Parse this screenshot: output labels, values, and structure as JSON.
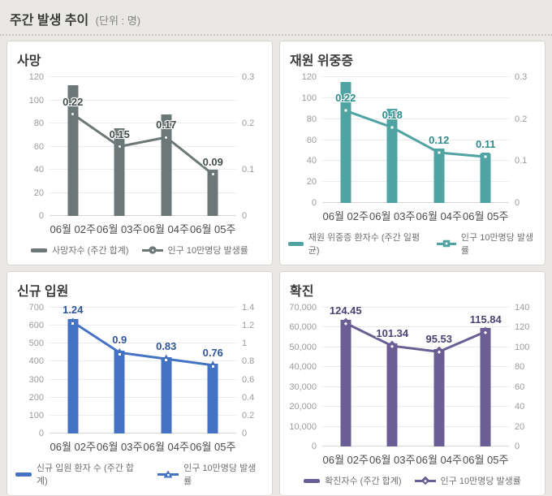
{
  "header": {
    "title": "주간 발생 추이",
    "unit": "(단위 : 명)"
  },
  "colors": {
    "page_bg": "#eae8e5",
    "panel_bg": "#ffffff",
    "panel_border": "#d9d6d2",
    "grid_line": "#eaeaea",
    "axis_text": "#9b9b9b",
    "x_label_text": "#4a4a4a",
    "legend_text": "#6f6f6f"
  },
  "chart_data": [
    {
      "type": "bar+line",
      "id": "deaths",
      "title": "사망",
      "bar_color": "#6c7877",
      "label_color": "#454f4e",
      "marker": "circle",
      "categories": [
        "06월 02주",
        "06월 03주",
        "06월 04주",
        "06월 05주"
      ],
      "bar_series": {
        "name": "사망자수 (주간 합계)",
        "axis": "left",
        "values": [
          113,
          76,
          88,
          40
        ]
      },
      "line_series": {
        "name": "인구 10만명당 발생률",
        "axis": "right",
        "values": [
          0.22,
          0.15,
          0.17,
          0.09
        ],
        "point_labels": [
          "0.22",
          "0.15",
          "0.17",
          "0.09"
        ]
      },
      "left_axis": {
        "min": 0,
        "max": 120,
        "tick_values": [
          0,
          20,
          40,
          60,
          80,
          100,
          120
        ],
        "tick_labels": [
          "0",
          "20",
          "40",
          "60",
          "80",
          "100",
          "120"
        ]
      },
      "right_axis": {
        "min": 0,
        "max": 0.3,
        "tick_values": [
          0,
          0.1,
          0.2,
          0.3
        ],
        "tick_labels": [
          "0",
          "0.1",
          "0.2",
          "0.3"
        ]
      }
    },
    {
      "type": "bar+line",
      "id": "severe",
      "title": "재원 위중증",
      "bar_color": "#4fa3a2",
      "label_color": "#2e8c8b",
      "marker": "square",
      "categories": [
        "06월 02주",
        "06월 03주",
        "06월 04주",
        "06월 05주"
      ],
      "bar_series": {
        "name": "재원 위중증 환자수 (주간 일평균)",
        "axis": "left",
        "values": [
          115,
          90,
          52,
          47
        ]
      },
      "line_series": {
        "name": "인구 10만명당 발생률",
        "axis": "right",
        "values": [
          0.22,
          0.18,
          0.12,
          0.11
        ],
        "point_labels": [
          "0.22",
          "0.18",
          "0.12",
          "0.11"
        ]
      },
      "left_axis": {
        "min": 0,
        "max": 120,
        "tick_values": [
          0,
          20,
          40,
          60,
          80,
          100,
          120
        ],
        "tick_labels": [
          "0",
          "20",
          "40",
          "60",
          "80",
          "100",
          "120"
        ]
      },
      "right_axis": {
        "min": 0,
        "max": 0.3,
        "tick_values": [
          0,
          0.1,
          0.2,
          0.3
        ],
        "tick_labels": [
          "0",
          "0.1",
          "0.2",
          "0.3"
        ]
      }
    },
    {
      "type": "bar+line",
      "id": "new-admissions",
      "title": "신규 입원",
      "bar_color": "#4472c4",
      "label_color": "#2e5596",
      "marker": "triangle",
      "categories": [
        "06월 02주",
        "06월 03주",
        "06월 04주",
        "06월 05주"
      ],
      "bar_series": {
        "name": "신규 입원 환자 수 (주간 합계)",
        "axis": "left",
        "values": [
          637,
          462,
          426,
          390
        ]
      },
      "line_series": {
        "name": "인구 10만명당 발생률",
        "axis": "right",
        "values": [
          1.24,
          0.9,
          0.83,
          0.76
        ],
        "point_labels": [
          "1.24",
          "0.9",
          "0.83",
          "0.76"
        ]
      },
      "left_axis": {
        "min": 0,
        "max": 700,
        "tick_values": [
          0,
          100,
          200,
          300,
          400,
          500,
          600,
          700
        ],
        "tick_labels": [
          "0",
          "100",
          "200",
          "300",
          "400",
          "500",
          "600",
          "700"
        ]
      },
      "right_axis": {
        "min": 0,
        "max": 1.4,
        "tick_values": [
          0,
          0.2,
          0.4,
          0.6,
          0.8,
          1,
          1.2,
          1.4
        ],
        "tick_labels": [
          "0",
          "0.2",
          "0.4",
          "0.6",
          "0.8",
          "1",
          "1.2",
          "1.4"
        ]
      }
    },
    {
      "type": "bar+line",
      "id": "confirmed",
      "title": "확진",
      "bar_color": "#6b5e94",
      "label_color": "#4d4174",
      "marker": "diamond",
      "categories": [
        "06월 02주",
        "06월 03주",
        "06월 04주",
        "06월 05주"
      ],
      "bar_series": {
        "name": "확진자수 (주간 합계)",
        "axis": "left",
        "values": [
          63990,
          52110,
          49120,
          59570
        ]
      },
      "line_series": {
        "name": "인구 10만명당 발생률",
        "axis": "right",
        "values": [
          124.45,
          101.34,
          95.53,
          115.84
        ],
        "point_labels": [
          "124.45",
          "101.34",
          "95.53",
          "115.84"
        ]
      },
      "left_axis": {
        "min": 0,
        "max": 70000,
        "tick_values": [
          0,
          10000,
          20000,
          30000,
          40000,
          50000,
          60000,
          70000
        ],
        "tick_labels": [
          "0",
          "10,000",
          "20,000",
          "30,000",
          "40,000",
          "50,000",
          "60,000",
          "70,000"
        ]
      },
      "right_axis": {
        "min": 0,
        "max": 140,
        "tick_values": [
          0,
          20,
          40,
          60,
          80,
          100,
          120,
          140
        ],
        "tick_labels": [
          "0",
          "20",
          "40",
          "60",
          "80",
          "100",
          "120",
          "140"
        ]
      }
    }
  ]
}
